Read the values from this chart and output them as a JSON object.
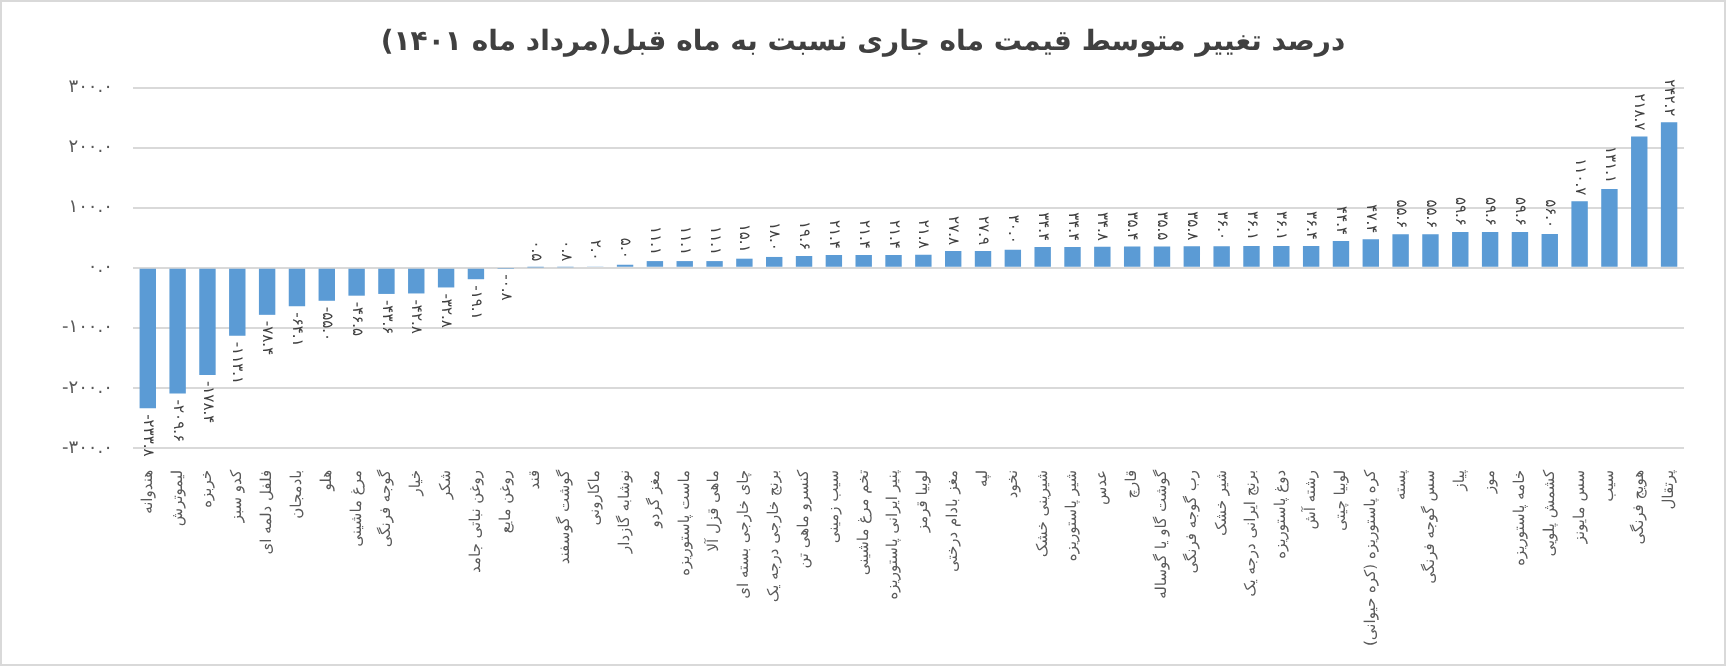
{
  "chart_data": {
    "type": "bar",
    "title": "درصد تغییر متوسط قیمت ماه جاری نسبت به ماه قبل(مرداد ماه ۱۴۰۱)",
    "categories": [
      "هندوانه",
      "لیموترش",
      "خربزه",
      "کدو سبز",
      "فلفل دلمه ای",
      "بادمجان",
      "هلو",
      "مرغ ماشینی",
      "گوجه فرنگی",
      "خیار",
      "شکر",
      "روغن نباتی جامد",
      "روغن مایع",
      "قند",
      "گوشت گوسفند",
      "ماکارونی",
      "نوشابه گازدار",
      "مغز گردو",
      "ماست پاستوریزه",
      "ماهی قزل آلا",
      "چای خارجی بسته ای",
      "برنج خارجی درجه یک",
      "کنسرو ماهی تن",
      "سیب زمینی",
      "تخم مرغ ماشینی",
      "پنیر ایرانی پاستوریزه",
      "لوبیا قرمز",
      "مغز بادام درختی",
      "لپه",
      "نخود",
      "شیرینی خشک",
      "شیر پاستوریزه",
      "عدس",
      "قارچ",
      "گوشت گاو یا گوساله",
      "رب گوجه فرنگی",
      "شیر خشک",
      "برنج ایرانی درجه یک",
      "دوغ پاستوریزه",
      "رشته آش",
      "لوبیا چیتی",
      "کره پاستوریزه (کره حیوانی)",
      "پسته",
      "سس گوجه فرنگی",
      "پیاز",
      "موز",
      "خامه پاستوریزه",
      "کشمش پلویی",
      "سس مایونز",
      "سیب",
      "هویج فرنگی",
      "پرتقال"
    ],
    "values": [
      -233.8,
      -209.6,
      -178.4,
      -113.1,
      -78.4,
      -64.1,
      -55.0,
      -46.5,
      -43.6,
      -42.8,
      -32.8,
      -19.1,
      -0.8,
      0.5,
      0.8,
      2.0,
      5.0,
      11.1,
      11.1,
      11.1,
      15.1,
      18.0,
      19.6,
      21.4,
      21.4,
      21.4,
      21.8,
      27.8,
      27.9,
      30.0,
      34.4,
      34.4,
      34.8,
      35.4,
      35.5,
      35.8,
      36.0,
      36.1,
      36.1,
      36.4,
      44.4,
      47.4,
      55.6,
      55.6,
      59.6,
      59.6,
      59.6,
      56.0,
      110.7,
      131.1,
      218.7,
      242.2
    ],
    "value_labels": [
      "-۲۳۳.۸",
      "-۲۰۹.۶",
      "-۱۷۸.۴",
      "-۱۱۳.۱",
      "-۷۸.۴",
      "-۶۴.۱",
      "-۵۵.۰",
      "-۴۶.۵",
      "-۴۳.۶",
      "-۴۲.۸",
      "-۳۲.۸",
      "-۱۹.۱",
      "-۰.۸",
      "۰.۵",
      "۰.۸",
      "۲.۰",
      "۵.۰",
      "۱۱.۱",
      "۱۱.۱",
      "۱۱.۱",
      "۱۵.۱",
      "۱۸.۰",
      "۱۹.۶",
      "۲۱.۴",
      "۲۱.۴",
      "۲۱.۴",
      "۲۱.۸",
      "۲۷.۸",
      "۲۷.۹",
      "۳۰.۰",
      "۳۴.۴",
      "۳۴.۴",
      "۳۴.۸",
      "۳۵.۴",
      "۳۵.۵",
      "۳۵.۸",
      "۳۶.۰",
      "۳۶.۱",
      "۳۶.۱",
      "۳۶.۴",
      "۴۴.۴",
      "۴۷.۴",
      "۵۵.۶",
      "۵۵.۶",
      "۵۹.۶",
      "۵۹.۶",
      "۵۹.۶",
      "۵۶.۰",
      "۱۱۰.۷",
      "۱۳۱.۱",
      "۲۱۸.۷",
      "۲۴۲.۲"
    ],
    "color": "#5b9bd5",
    "ylim": [
      -300,
      300
    ],
    "yticks": [
      {
        "value": -300,
        "label": "-۳۰۰.۰"
      },
      {
        "value": -200,
        "label": "-۲۰۰.۰"
      },
      {
        "value": -100,
        "label": "-۱۰۰.۰"
      },
      {
        "value": 0,
        "label": "۰.۰"
      },
      {
        "value": 100,
        "label": "۱۰۰.۰"
      },
      {
        "value": 200,
        "label": "۲۰۰.۰"
      },
      {
        "value": 300,
        "label": "۳۰۰.۰"
      }
    ],
    "grid": "y",
    "legend": false
  }
}
